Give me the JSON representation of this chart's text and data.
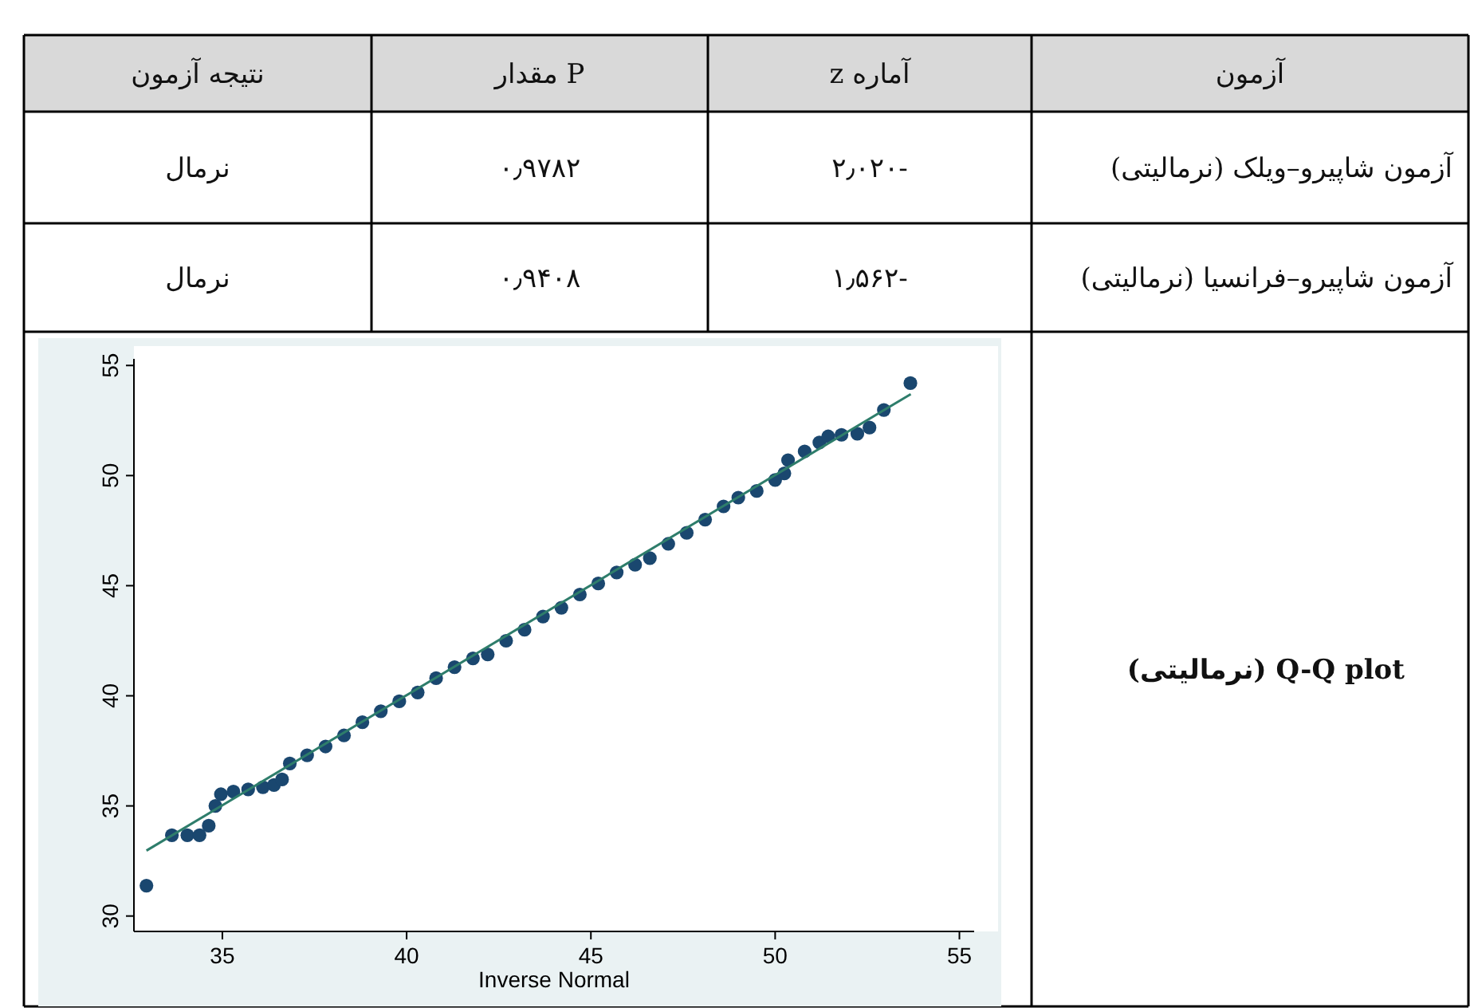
{
  "chart_data": [
    {
      "type": "other",
      "annotations": [
        "نتیجه آزمون",
        "P مقدار",
        "آماره z",
        "آزمون",
        "نرمال",
        "۰٫۹۷۸۲",
        "-۲٫۰۲۰",
        "آزمون شاپیرو–ویلک (نرمالیتی)",
        "نرمال",
        "۰٫۹۴۰۸",
        "-۱٫۵۶۲",
        "آزمون شاپیرو–فرانسیا (نرمالیتی)",
        "Q-Q plot (نرمالیتی)"
      ]
    },
    {
      "type": "scatter",
      "xlabel": "Inverse Normal",
      "xlim": [
        32.6,
        55.4
      ],
      "ylim": [
        29.3,
        55.3
      ],
      "xticks": [
        35,
        40,
        45,
        50,
        55
      ],
      "yticks": [
        30,
        35,
        40,
        45,
        50,
        55
      ],
      "series": [
        {
          "type": "scatter",
          "marker": "circle",
          "color": "#1a476f",
          "x": [
            32.94,
            33.63,
            34.05,
            34.38,
            34.63,
            34.81,
            34.96,
            35.3,
            35.7,
            36.1,
            36.4,
            36.62,
            36.83,
            37.3,
            37.8,
            38.3,
            38.8,
            39.3,
            39.8,
            40.3,
            40.8,
            41.3,
            41.8,
            42.2,
            42.7,
            43.2,
            43.7,
            44.2,
            44.7,
            45.2,
            45.7,
            46.2,
            46.6,
            47.1,
            47.6,
            48.1,
            48.6,
            49.0,
            49.5,
            50.0,
            50.25,
            50.35,
            50.8,
            51.2,
            51.44,
            51.8,
            52.23,
            52.56,
            52.95,
            53.67
          ],
          "values": [
            31.38,
            33.67,
            33.67,
            33.67,
            34.1,
            35.0,
            35.53,
            35.65,
            35.75,
            35.85,
            35.95,
            36.2,
            36.93,
            37.3,
            37.7,
            38.2,
            38.8,
            39.3,
            39.75,
            40.15,
            40.8,
            41.3,
            41.7,
            41.88,
            42.5,
            43.0,
            43.6,
            44.0,
            44.6,
            45.1,
            45.6,
            45.95,
            46.25,
            46.9,
            47.4,
            48.0,
            48.6,
            49.0,
            49.3,
            49.8,
            50.1,
            50.7,
            51.1,
            51.5,
            51.78,
            51.85,
            51.9,
            52.18,
            52.98,
            54.2
          ]
        },
        {
          "type": "line",
          "color": "#2e7d6b",
          "x": [
            32.94,
            53.68
          ],
          "values": [
            32.97,
            53.7
          ]
        }
      ]
    }
  ]
}
